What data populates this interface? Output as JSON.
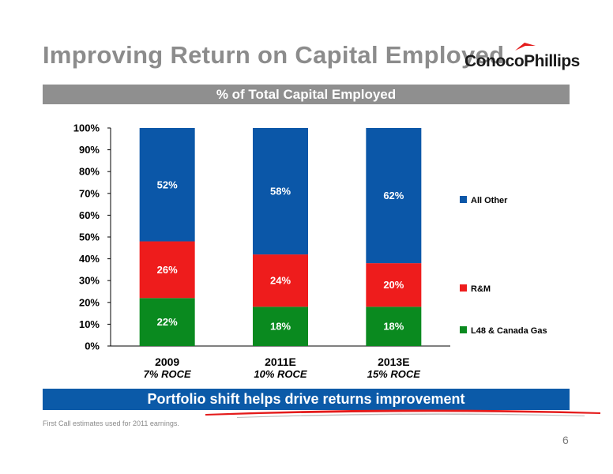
{
  "slide": {
    "title": "Improving Return on Capital Employed",
    "logo_text": "ConocoPhillips",
    "subtitle": "% of Total Capital Employed",
    "banner": "Portfolio shift helps drive returns improvement",
    "footnote": "First Call estimates used for 2011 earnings.",
    "page_number": "6"
  },
  "colors": {
    "title_gray": "#8c8c8c",
    "subtitle_bar": "#8f8f8f",
    "banner_blue": "#0b5aa8",
    "logo_red": "#e41b1b"
  },
  "chart_data": {
    "type": "bar",
    "stacked": true,
    "categories": [
      "2009",
      "2011E",
      "2013E"
    ],
    "category_sublabels": [
      "7% ROCE",
      "10% ROCE",
      "15% ROCE"
    ],
    "series": [
      {
        "name": "L48 & Canada Gas",
        "values": [
          22,
          18,
          18
        ],
        "labels": [
          "22%",
          "18%",
          "18%"
        ],
        "color": "#0a8a1f"
      },
      {
        "name": "R&M",
        "values": [
          26,
          24,
          20
        ],
        "labels": [
          "26%",
          "24%",
          "20%"
        ],
        "color": "#ee1c1c"
      },
      {
        "name": "All Other",
        "values": [
          52,
          58,
          62
        ],
        "labels": [
          "52%",
          "58%",
          "62%"
        ],
        "color": "#0b57a8"
      }
    ],
    "ylim": [
      0,
      100
    ],
    "yticks": [
      "0%",
      "10%",
      "20%",
      "30%",
      "40%",
      "50%",
      "60%",
      "70%",
      "80%",
      "90%",
      "100%"
    ],
    "grid": false,
    "legend_position": "right"
  }
}
